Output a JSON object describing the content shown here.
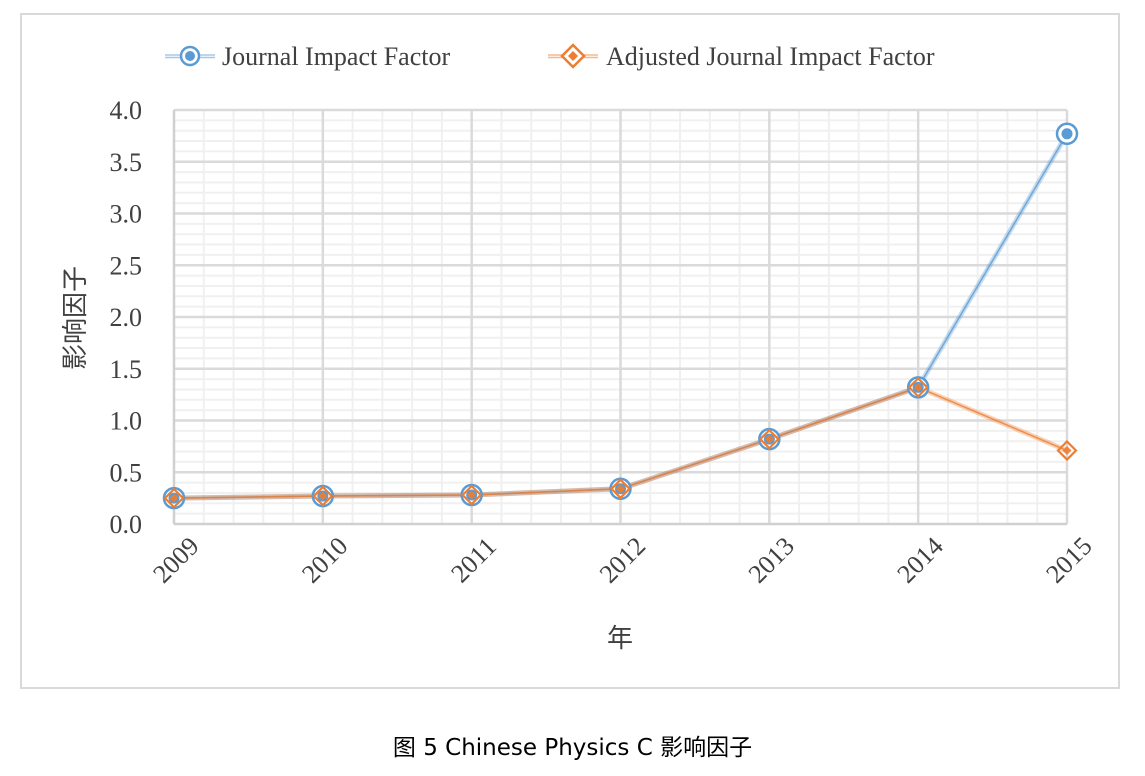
{
  "figure_caption": "图  5 Chinese Physics C  影响因子",
  "chart_data": {
    "type": "line",
    "title": "",
    "xlabel": "年",
    "ylabel": "影响因子",
    "categories": [
      "2009",
      "2010",
      "2011",
      "2012",
      "2013",
      "2014",
      "2015"
    ],
    "ylim": [
      0,
      4
    ],
    "yticks": [
      "0.0",
      "0.5",
      "1.0",
      "1.5",
      "2.0",
      "2.5",
      "3.0",
      "3.5",
      "4.0"
    ],
    "grid": "on (major and minor)",
    "legend_position": "top",
    "series": [
      {
        "name": "Journal Impact Factor",
        "marker": "circle",
        "color": "#5b9bd5",
        "values": [
          0.25,
          0.27,
          0.28,
          0.34,
          0.82,
          1.32,
          3.77
        ]
      },
      {
        "name": "Adjusted Journal Impact Factor",
        "marker": "diamond",
        "color": "#ed7d31",
        "values": [
          0.25,
          0.27,
          0.28,
          0.34,
          0.82,
          1.32,
          0.71
        ]
      }
    ]
  }
}
